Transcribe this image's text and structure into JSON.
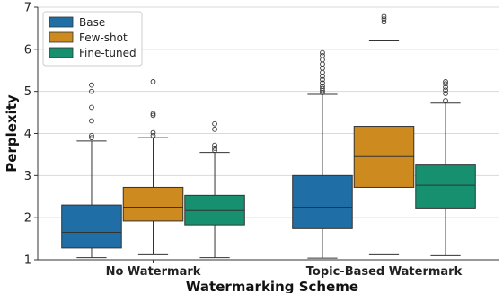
{
  "chart_data": {
    "type": "box",
    "xlabel": "Watermarking Scheme",
    "ylabel": "Perplexity",
    "ylim": [
      1,
      7
    ],
    "yticks": [
      1,
      2,
      3,
      4,
      5,
      6,
      7
    ],
    "grid": "horizontal",
    "legend_position": "top-left",
    "categories": [
      "No Watermark",
      "Topic-Based Watermark"
    ],
    "series": [
      {
        "name": "Base",
        "color": "#1f6ea6",
        "boxes": [
          {
            "whislo": 1.05,
            "q1": 1.28,
            "med": 1.65,
            "q3": 2.3,
            "whishi": 3.82,
            "fliers": [
              3.9,
              3.95,
              4.3,
              4.62,
              5.0,
              5.15
            ]
          },
          {
            "whislo": 1.04,
            "q1": 1.74,
            "med": 2.25,
            "q3": 3.0,
            "whishi": 4.93,
            "fliers": [
              4.97,
              5.02,
              5.07,
              5.12,
              5.2,
              5.28,
              5.36,
              5.45,
              5.55,
              5.65,
              5.75,
              5.85,
              5.92
            ]
          }
        ]
      },
      {
        "name": "Few-shot",
        "color": "#cc8a1f",
        "boxes": [
          {
            "whislo": 1.12,
            "q1": 1.92,
            "med": 2.25,
            "q3": 2.72,
            "whishi": 3.9,
            "fliers": [
              3.95,
              4.02,
              4.43,
              4.47,
              5.23
            ]
          },
          {
            "whislo": 1.12,
            "q1": 2.72,
            "med": 3.45,
            "q3": 4.17,
            "whishi": 6.2,
            "fliers": [
              6.65,
              6.72,
              6.78
            ]
          }
        ]
      },
      {
        "name": "Fine-tuned",
        "color": "#179070",
        "boxes": [
          {
            "whislo": 1.05,
            "q1": 1.83,
            "med": 2.17,
            "q3": 2.53,
            "whishi": 3.55,
            "fliers": [
              3.6,
              3.65,
              3.72,
              4.1,
              4.23
            ]
          },
          {
            "whislo": 1.1,
            "q1": 2.23,
            "med": 2.77,
            "q3": 3.25,
            "whishi": 4.72,
            "fliers": [
              4.78,
              4.95,
              5.03,
              5.1,
              5.18,
              5.23
            ]
          }
        ]
      }
    ]
  }
}
